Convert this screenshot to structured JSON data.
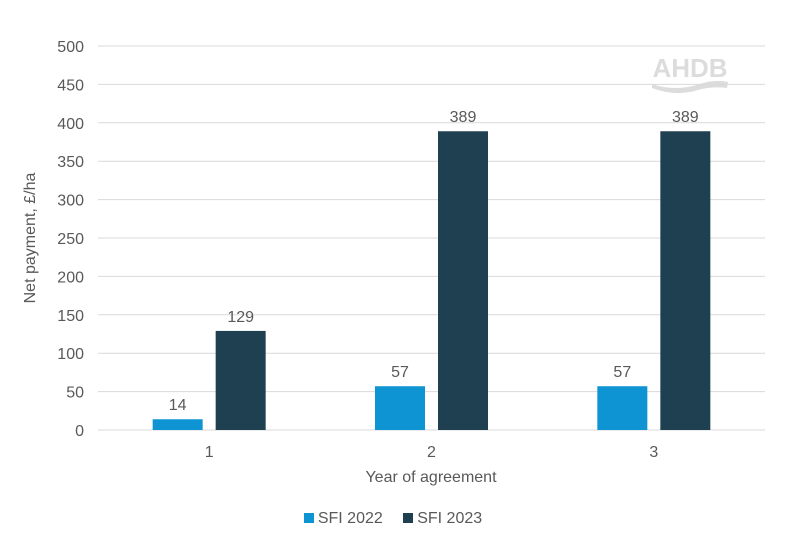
{
  "chart_data": {
    "type": "bar",
    "categories": [
      "1",
      "2",
      "3"
    ],
    "series": [
      {
        "name": "SFI 2022",
        "values": [
          14,
          57,
          57
        ],
        "color": "#0f94d3"
      },
      {
        "name": "SFI 2023",
        "values": [
          129,
          389,
          389
        ],
        "color": "#1f4050"
      }
    ],
    "xlabel": "Year of agreement",
    "ylabel": "Net payment, £/ha",
    "ylim": [
      0,
      500
    ],
    "yticks": [
      0,
      50,
      100,
      150,
      200,
      250,
      300,
      350,
      400,
      450,
      500
    ],
    "grid": true,
    "legend": "bottom",
    "data_labels": true
  },
  "watermark": "AHDB"
}
